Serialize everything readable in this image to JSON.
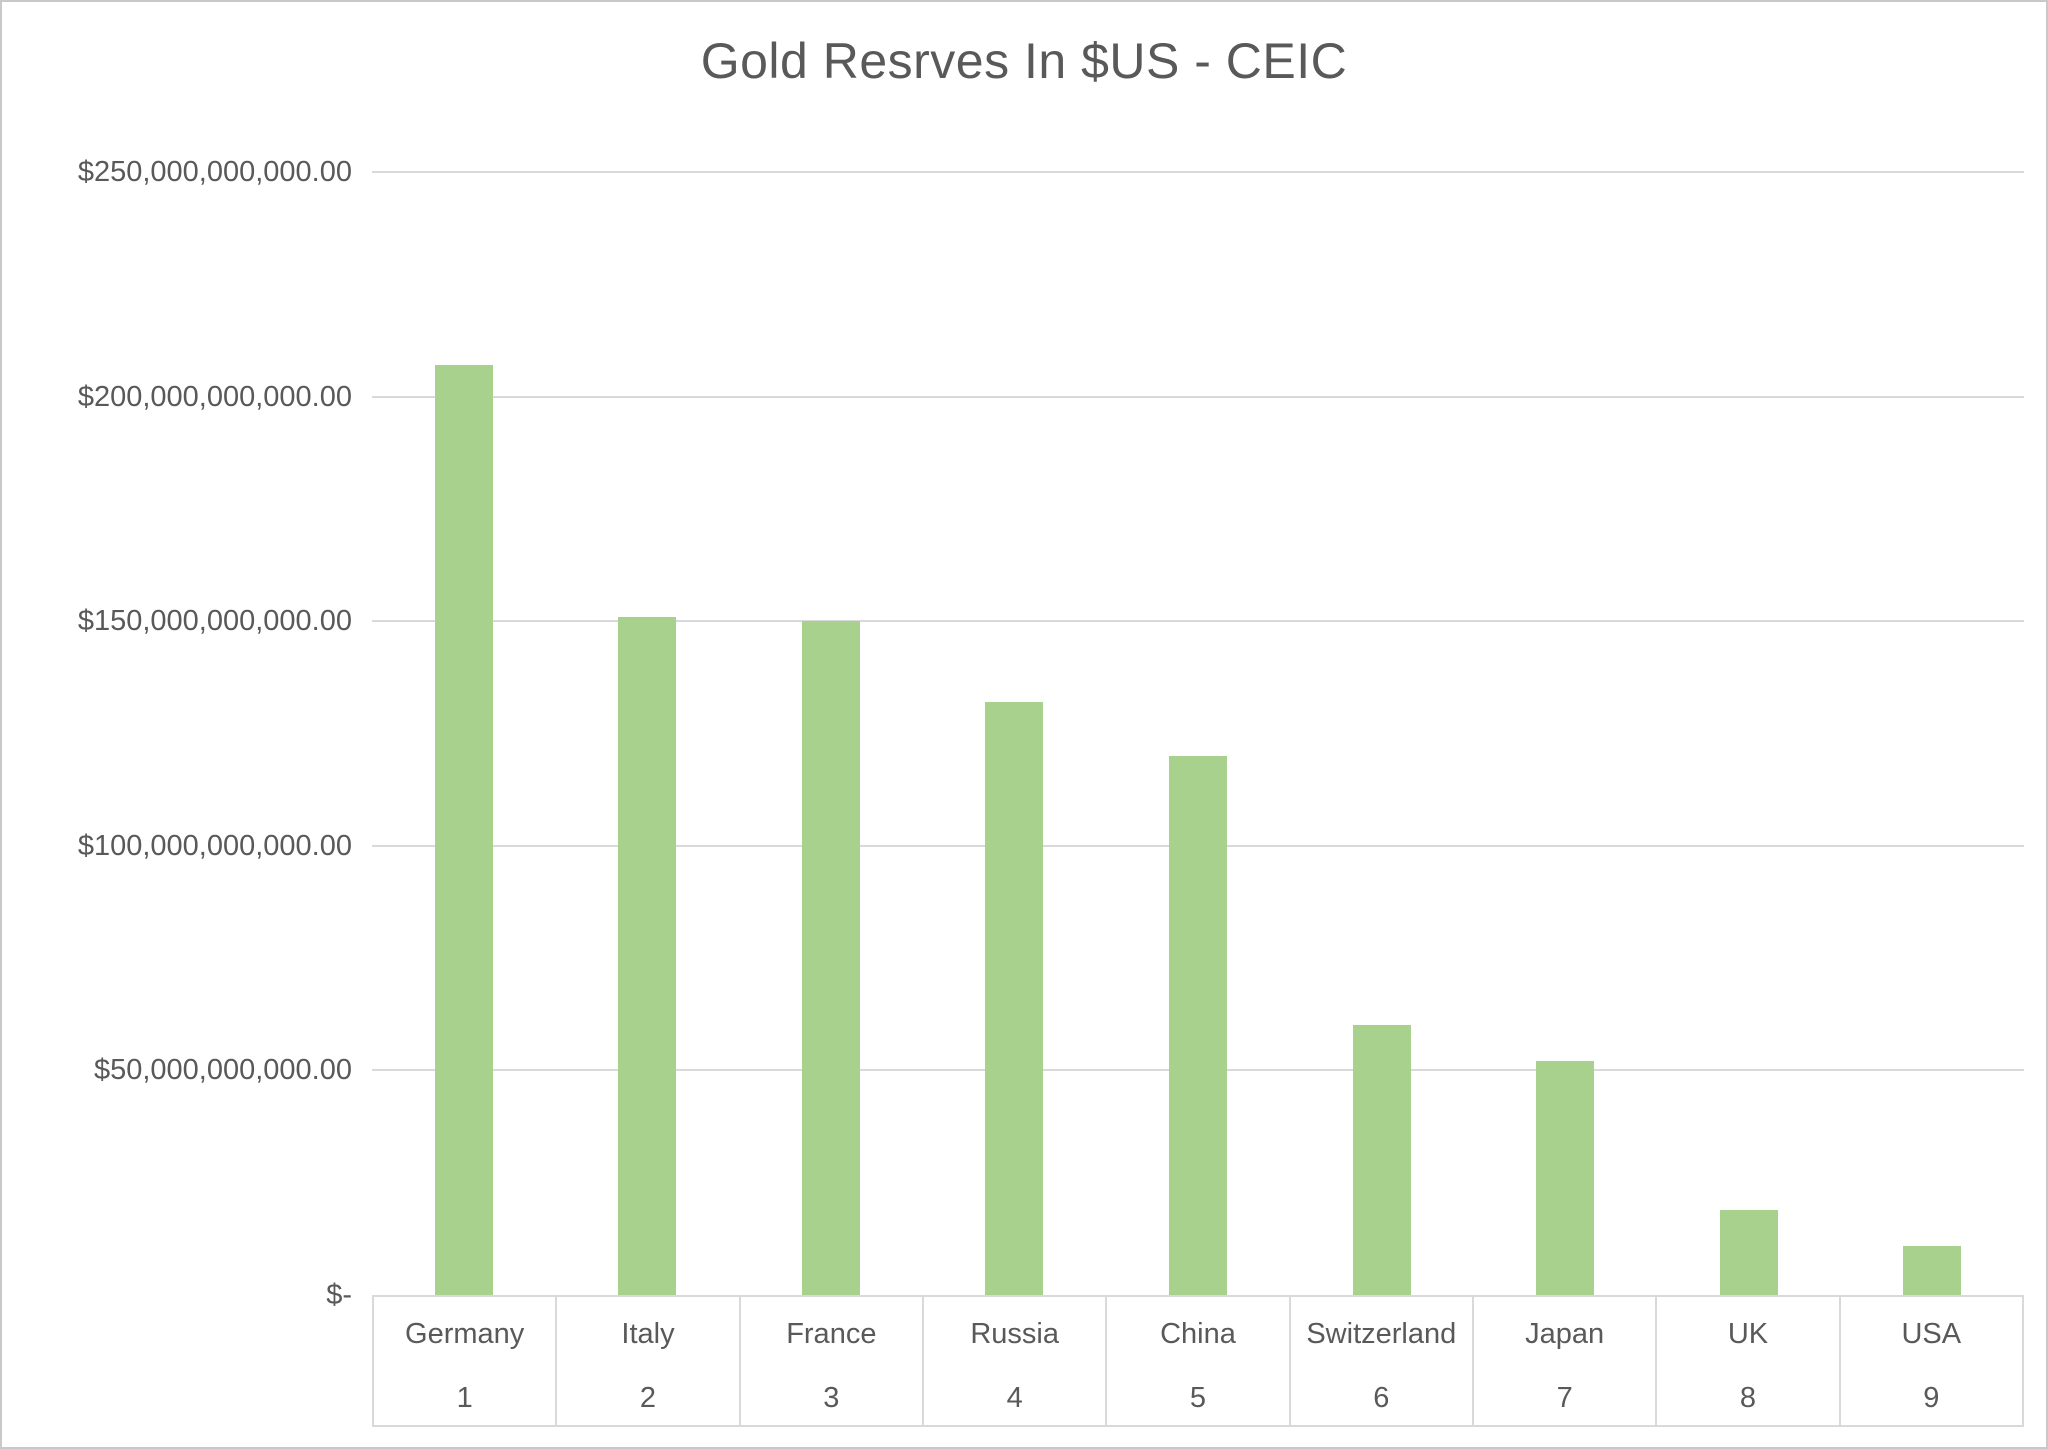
{
  "chart": {
    "colors": {
      "bar": "#a9d18e",
      "grid": "#d9d9d9",
      "axis": "#d9d9d9",
      "text": "#595959",
      "frame_border": "#c9c9c9",
      "background": "#ffffff"
    }
  },
  "chart_data": {
    "type": "bar",
    "title": "Gold Resrves In $US - CEIC",
    "xlabel": "",
    "ylabel": "",
    "categories": [
      "Germany",
      "Italy",
      "France",
      "Russia",
      "China",
      "Switzerland",
      "Japan",
      "UK",
      "USA"
    ],
    "category_indices": [
      "1",
      "2",
      "3",
      "4",
      "5",
      "6",
      "7",
      "8",
      "9"
    ],
    "values": [
      207000000000,
      151000000000,
      150000000000,
      132000000000,
      120000000000,
      60000000000,
      52000000000,
      19000000000,
      11000000000
    ],
    "ylim": [
      0,
      250000000000
    ],
    "y_ticks": [
      0,
      50000000000,
      100000000000,
      150000000000,
      200000000000,
      250000000000
    ],
    "y_tick_labels": [
      "$-",
      "$50,000,000,000.00",
      "$100,000,000,000.00",
      "$150,000,000,000.00",
      "$200,000,000,000.00",
      "$250,000,000,000.00"
    ],
    "grid": true,
    "legend": false
  }
}
